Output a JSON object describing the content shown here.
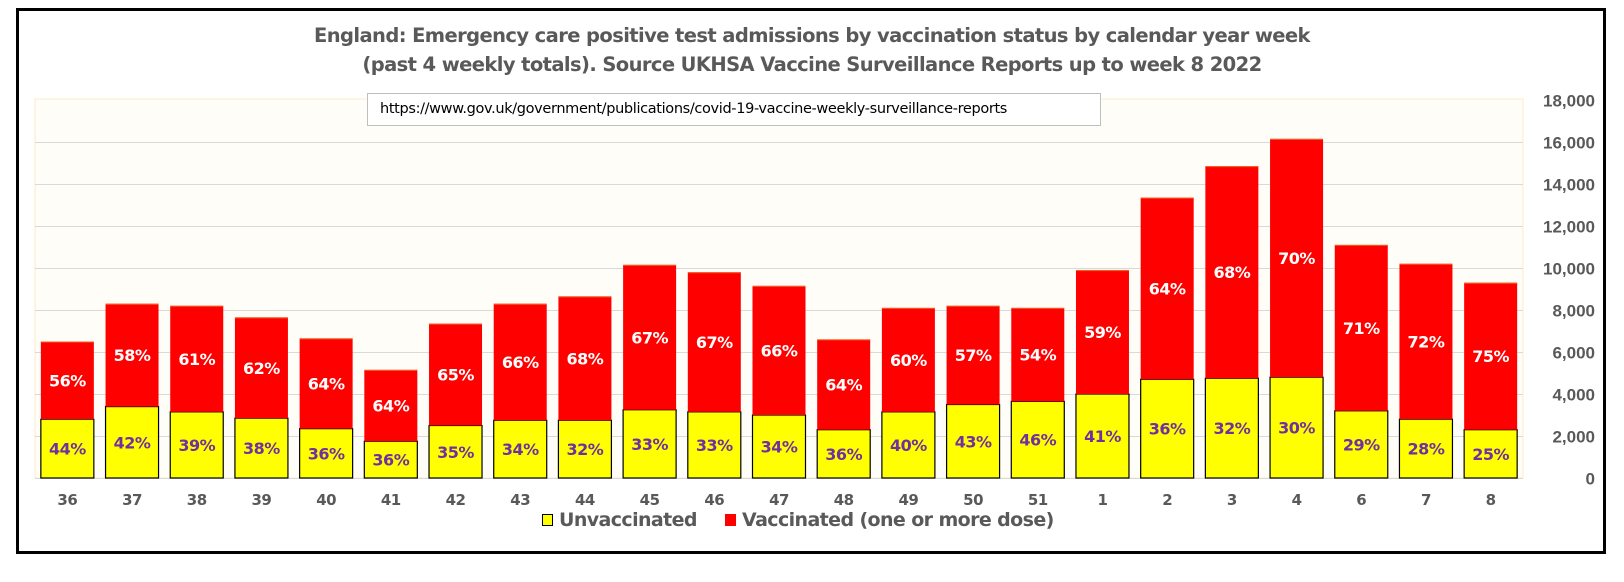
{
  "colors": {
    "unvaccinated": "#FFFF00",
    "vaccinated": "#FF0000",
    "unvaccinated_label": "#7030A0",
    "vaccinated_label": "#FFFFFF",
    "plot_background": "#FFFDF7",
    "gridline": "#D9D9D9",
    "text": "#595959"
  },
  "chart_data": {
    "type": "bar",
    "stacked": true,
    "title": "England: Emergency care positive test admissions by vaccination status by calendar year week",
    "subtitle": "(past 4 weekly totals). Source UKHSA Vaccine Surveillance Reports up to week 8 2022",
    "source_url": "https://www.gov.uk/government/publications/covid-19-vaccine-weekly-surveillance-reports",
    "xlabel": "",
    "ylabel": "",
    "y_axis_position": "right",
    "ylim": [
      0,
      18000
    ],
    "yticks": [
      0,
      2000,
      4000,
      6000,
      8000,
      10000,
      12000,
      14000,
      16000,
      18000
    ],
    "ytick_labels": [
      "0",
      "2,000",
      "4,000",
      "6,000",
      "8,000",
      "10,000",
      "12,000",
      "14,000",
      "16,000",
      "18,000"
    ],
    "grid": true,
    "legend_position": "bottom",
    "categories": [
      "36",
      "37",
      "38",
      "39",
      "40",
      "41",
      "42",
      "43",
      "44",
      "45",
      "46",
      "47",
      "48",
      "49",
      "50",
      "51",
      "1",
      "2",
      "3",
      "4",
      "6",
      "7",
      "8"
    ],
    "series": [
      {
        "name": "Unvaccinated",
        "values": [
          2800,
          3400,
          3150,
          2850,
          2350,
          1750,
          2500,
          2750,
          2750,
          3250,
          3150,
          3000,
          2300,
          3150,
          3500,
          3650,
          4000,
          4700,
          4750,
          4800,
          3200,
          2800,
          2300
        ],
        "data_labels": [
          "44%",
          "42%",
          "39%",
          "38%",
          "36%",
          "36%",
          "35%",
          "34%",
          "32%",
          "33%",
          "33%",
          "34%",
          "36%",
          "40%",
          "43%",
          "46%",
          "41%",
          "36%",
          "32%",
          "30%",
          "29%",
          "28%",
          "25%"
        ]
      },
      {
        "name": "Vaccinated (one or more dose)",
        "values": [
          3700,
          4900,
          5050,
          4800,
          4300,
          3400,
          4850,
          5550,
          5900,
          6900,
          6650,
          6150,
          4300,
          4950,
          4700,
          4450,
          5900,
          8650,
          10100,
          11350,
          7900,
          7400,
          7000
        ],
        "data_labels": [
          "56%",
          "58%",
          "61%",
          "62%",
          "64%",
          "64%",
          "65%",
          "66%",
          "68%",
          "67%",
          "67%",
          "66%",
          "64%",
          "60%",
          "57%",
          "54%",
          "59%",
          "64%",
          "68%",
          "70%",
          "71%",
          "72%",
          "75%"
        ]
      }
    ]
  }
}
